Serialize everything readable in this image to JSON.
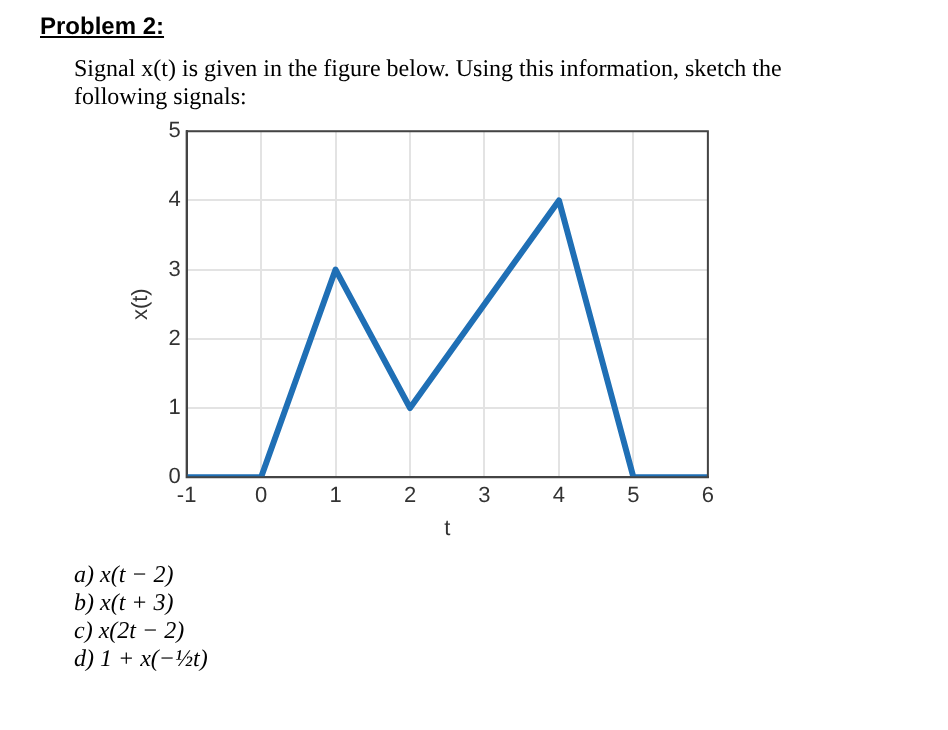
{
  "chart_data": {
    "type": "line",
    "title": "Problem 2:",
    "subtitle": "Signal x(t) is given in the figure below. Using this information, sketch the following signals:",
    "xlabel": "t",
    "ylabel": "x(t)",
    "x": [
      -1,
      0,
      1,
      2,
      4,
      5,
      6
    ],
    "series": [
      {
        "color": "#1f6fb5",
        "values": [
          0,
          0,
          3,
          1,
          4,
          0,
          0
        ]
      }
    ],
    "xlim": [
      -1,
      6
    ],
    "xticks": [
      -1,
      0,
      1,
      2,
      3,
      4,
      5,
      6
    ],
    "ylim": [
      0,
      5
    ],
    "yticks": [
      0,
      1,
      2,
      3,
      4,
      5
    ],
    "grid": true,
    "legend": false,
    "marker": "none",
    "line_style": "solid",
    "annotations": [
      "a)  x(t − 2)",
      "b)  x(t + 3)",
      "c)  x(2t − 2)",
      "d)  1 + x(−½t)"
    ]
  }
}
